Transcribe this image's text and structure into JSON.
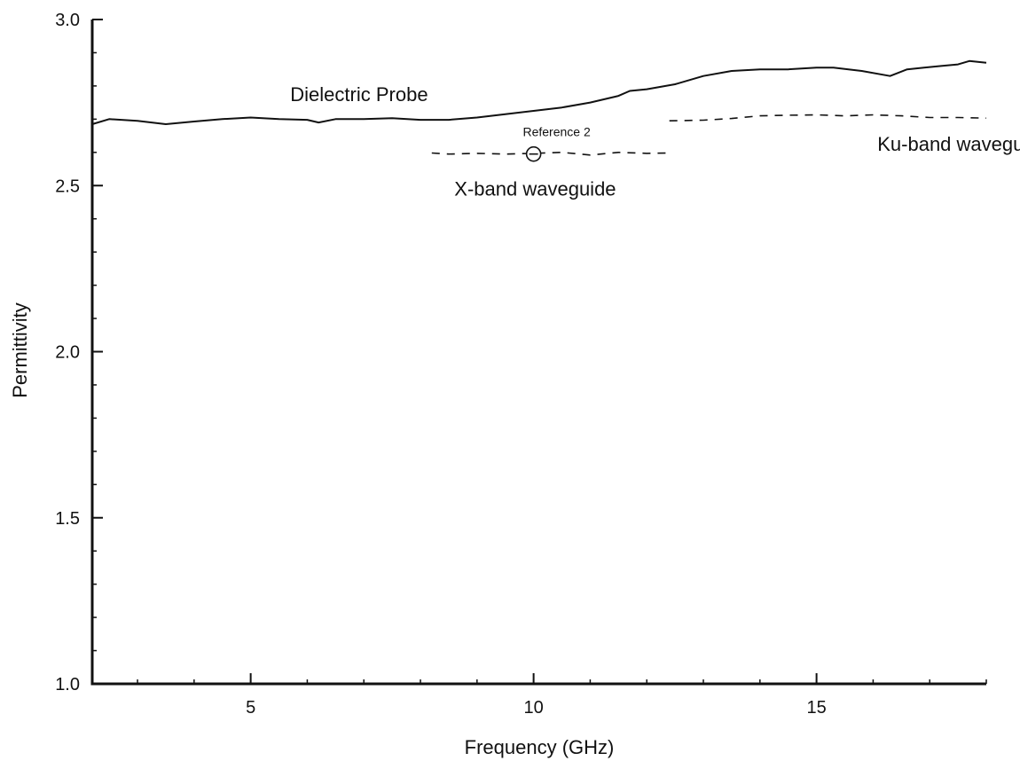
{
  "chart_data": {
    "type": "line",
    "xlabel": "Frequency (GHz)",
    "ylabel": "Permittivity",
    "xlim": [
      2.2,
      18
    ],
    "ylim": [
      1.0,
      3.0
    ],
    "x_ticks": [
      {
        "value": 5,
        "label": "5"
      },
      {
        "value": 10,
        "label": "10"
      },
      {
        "value": 15,
        "label": "15"
      }
    ],
    "y_ticks": [
      {
        "value": 1.0,
        "label": "1.0"
      },
      {
        "value": 1.5,
        "label": "1.5"
      },
      {
        "value": 2.0,
        "label": "2.0"
      },
      {
        "value": 2.5,
        "label": "2.5"
      },
      {
        "value": 3.0,
        "label": "3.0"
      }
    ],
    "x_minor_step": 1,
    "y_minor_step": 0.1,
    "grid": false,
    "legend": "none",
    "series": [
      {
        "name": "Dielectric Probe",
        "style": "solid",
        "label_at": [
          5.7,
          2.755
        ],
        "x": [
          2.2,
          2.5,
          3.0,
          3.5,
          4.0,
          4.5,
          5.0,
          5.5,
          6.0,
          6.2,
          6.5,
          7.0,
          7.5,
          8.0,
          8.5,
          9.0,
          9.5,
          10.0,
          10.5,
          11.0,
          11.5,
          11.7,
          12.0,
          12.5,
          13.0,
          13.5,
          14.0,
          14.5,
          15.0,
          15.3,
          15.8,
          16.3,
          16.6,
          16.9,
          17.2,
          17.5,
          17.7,
          18.0
        ],
        "y": [
          2.685,
          2.7,
          2.695,
          2.685,
          2.693,
          2.7,
          2.705,
          2.7,
          2.698,
          2.69,
          2.7,
          2.7,
          2.703,
          2.698,
          2.698,
          2.705,
          2.715,
          2.725,
          2.735,
          2.75,
          2.77,
          2.785,
          2.79,
          2.805,
          2.83,
          2.845,
          2.85,
          2.85,
          2.855,
          2.855,
          2.845,
          2.83,
          2.85,
          2.855,
          2.86,
          2.865,
          2.875,
          2.87
        ]
      },
      {
        "name": "X-band waveguide",
        "style": "dashed",
        "label_at": [
          8.6,
          2.47
        ],
        "x": [
          8.2,
          8.5,
          9.0,
          9.5,
          10.0,
          10.5,
          11.0,
          11.5,
          12.0,
          12.4
        ],
        "y": [
          2.598,
          2.595,
          2.597,
          2.595,
          2.597,
          2.6,
          2.592,
          2.6,
          2.597,
          2.598
        ]
      },
      {
        "name": "Ku-band waveguide",
        "style": "dashed",
        "label_at": [
          17.6,
          2.605
        ],
        "x": [
          12.4,
          13.0,
          13.5,
          14.0,
          14.5,
          15.0,
          15.5,
          16.0,
          16.5,
          17.0,
          17.5,
          18.0
        ],
        "y": [
          2.695,
          2.697,
          2.702,
          2.71,
          2.712,
          2.713,
          2.71,
          2.713,
          2.71,
          2.705,
          2.705,
          2.703
        ]
      }
    ],
    "annotations": [
      {
        "text": "Reference 2",
        "x": 10.0,
        "y": 2.595,
        "marker": "circle-minus"
      }
    ]
  }
}
